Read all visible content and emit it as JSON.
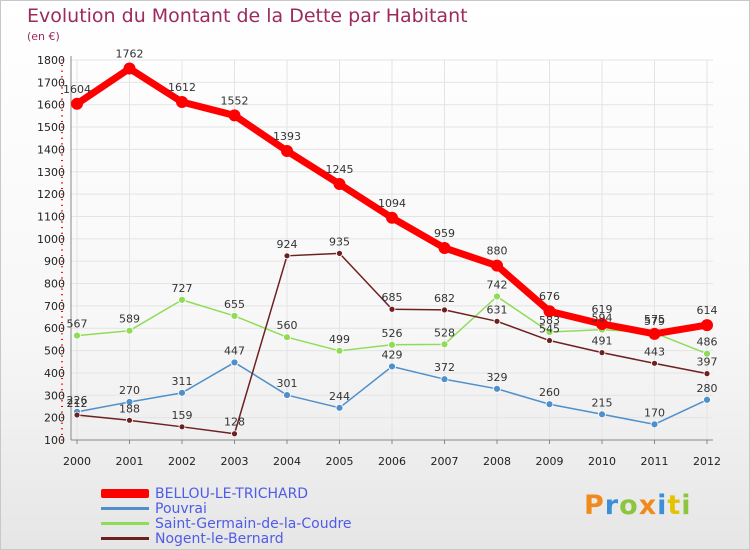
{
  "header": {
    "title": "Evolution du Montant de la Dette par Habitant",
    "unit": "(en €)"
  },
  "logo": {
    "text": "Proxiti"
  },
  "chart_data": {
    "type": "line",
    "title": "Evolution du Montant de la Dette par Habitant",
    "ylabel": "(en €)",
    "xlabel": "",
    "x": [
      "2000",
      "2001",
      "2002",
      "2003",
      "2004",
      "2005",
      "2006",
      "2007",
      "2008",
      "2009",
      "2010",
      "2011",
      "2012"
    ],
    "ylim": [
      100,
      1800
    ],
    "yticks": [
      100,
      200,
      300,
      400,
      500,
      600,
      700,
      800,
      900,
      1000,
      1100,
      1200,
      1300,
      1400,
      1500,
      1600,
      1700,
      1800
    ],
    "legend_position": "bottom-left",
    "series": [
      {
        "name": "Pouvrai",
        "color": "#4f8fcb",
        "values": [
          226,
          270,
          311,
          447,
          301,
          244,
          429,
          372,
          329,
          260,
          215,
          170,
          280
        ]
      },
      {
        "name": "Saint-Germain-de-la-Coudre",
        "color": "#8fdd57",
        "values": [
          567,
          589,
          727,
          655,
          560,
          499,
          526,
          528,
          742,
          583,
          594,
          579,
          486
        ]
      },
      {
        "name": "Nogent-le-Bernard",
        "color": "#6e2020",
        "values": [
          212,
          188,
          159,
          128,
          924,
          935,
          685,
          682,
          631,
          545,
          491,
          443,
          397
        ]
      },
      {
        "name": "BELLOU-LE-TRICHARD",
        "color": "#ff0000",
        "values": [
          1604,
          1762,
          1612,
          1552,
          1393,
          1245,
          1094,
          959,
          880,
          676,
          619,
          575,
          614
        ]
      }
    ]
  }
}
